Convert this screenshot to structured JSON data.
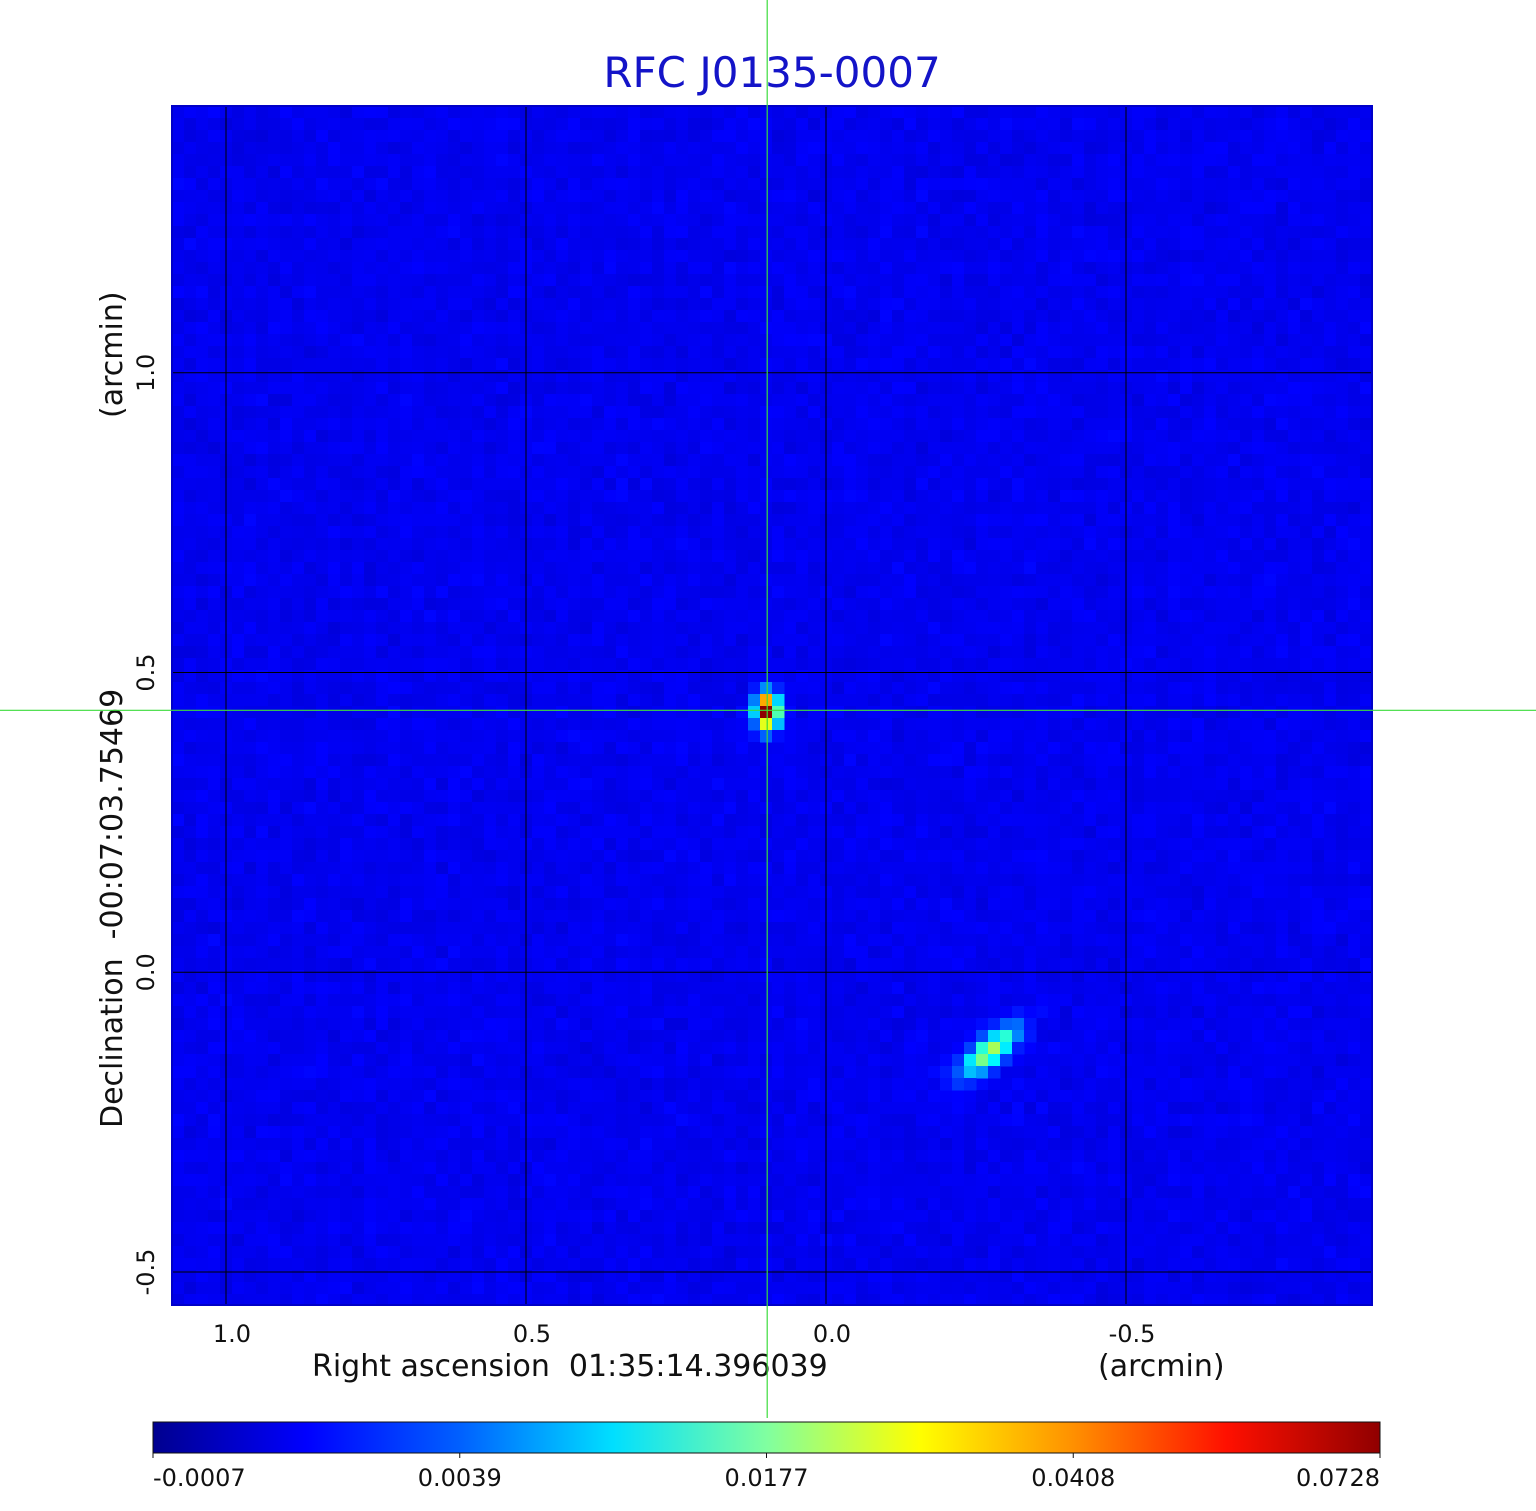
{
  "chart_data": {
    "type": "heatmap",
    "title": "RFC J0135-0007",
    "xlabel": "Right ascension  01:35:14.396039",
    "xunit": "(arcmin)",
    "ylabel": "Declination  -00:07:03.75469",
    "yunit": "(arcmin)",
    "x_ticks": [
      "1.0",
      "0.5",
      "0.0",
      "-0.5"
    ],
    "y_ticks": [
      "1.0",
      "0.5",
      "0.0",
      "-0.5"
    ],
    "xlim": [
      1.09,
      -0.91
    ],
    "ylim": [
      -0.555,
      1.445
    ],
    "x_reversed": true,
    "grid": true,
    "crosshair": {
      "x": 0.098,
      "y": 0.437,
      "color": "#3cdc3c"
    },
    "colormap": "jet",
    "colorbar": {
      "ticks": [
        "-0.0007",
        "0.0039",
        "0.0177",
        "0.0408",
        "0.0728"
      ],
      "min": -0.0007,
      "max": 0.0728
    },
    "sources": [
      {
        "x": 0.098,
        "y": 0.437,
        "peak": 0.0728,
        "description": "compact bright core"
      },
      {
        "x": -0.273,
        "y": -0.13,
        "peak": 0.036,
        "description": "elongated secondary component"
      }
    ],
    "background_level": 0.0
  }
}
